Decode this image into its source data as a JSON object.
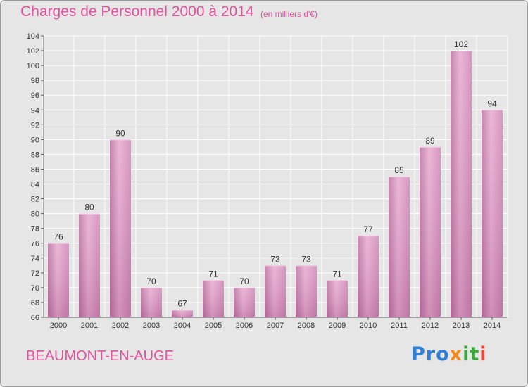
{
  "chart_data": {
    "type": "bar",
    "title": "Charges de Personnel 2000 à 2014",
    "subtitle": "(en milliers d'€)",
    "categories": [
      "2000",
      "2001",
      "2002",
      "2003",
      "2004",
      "2005",
      "2006",
      "2007",
      "2008",
      "2009",
      "2010",
      "2011",
      "2012",
      "2013",
      "2014"
    ],
    "values": [
      76,
      80,
      90,
      70,
      67,
      71,
      70,
      73,
      73,
      71,
      77,
      85,
      89,
      102,
      94
    ],
    "data_labels": [
      "76",
      "80",
      "90",
      "70",
      "67",
      "71",
      "70",
      "73",
      "73",
      "71",
      "77",
      "85",
      "89",
      "102",
      "94"
    ],
    "ylim": [
      66,
      104
    ],
    "yticks": [
      66,
      68,
      70,
      72,
      74,
      76,
      78,
      80,
      82,
      84,
      86,
      88,
      90,
      92,
      94,
      96,
      98,
      100,
      102,
      104
    ],
    "ytick_labels": [
      "66",
      "68",
      "70",
      "72",
      "74",
      "76",
      "78",
      "80",
      "82",
      "84",
      "86",
      "88",
      "90",
      "92",
      "94",
      "96",
      "98",
      "100",
      "102",
      "104"
    ],
    "grid": true,
    "xlabel": "",
    "ylabel": "",
    "colors": {
      "bar": "#d98fbd",
      "bar_light": "#e8a9d0",
      "bar_dark": "#b9729f",
      "text": "#e0529b"
    }
  },
  "commune": "BEAUMONT-EN-AUGE",
  "logo": {
    "text": "Proxiti",
    "parts": [
      "Pro",
      "x",
      "it",
      "i"
    ]
  }
}
